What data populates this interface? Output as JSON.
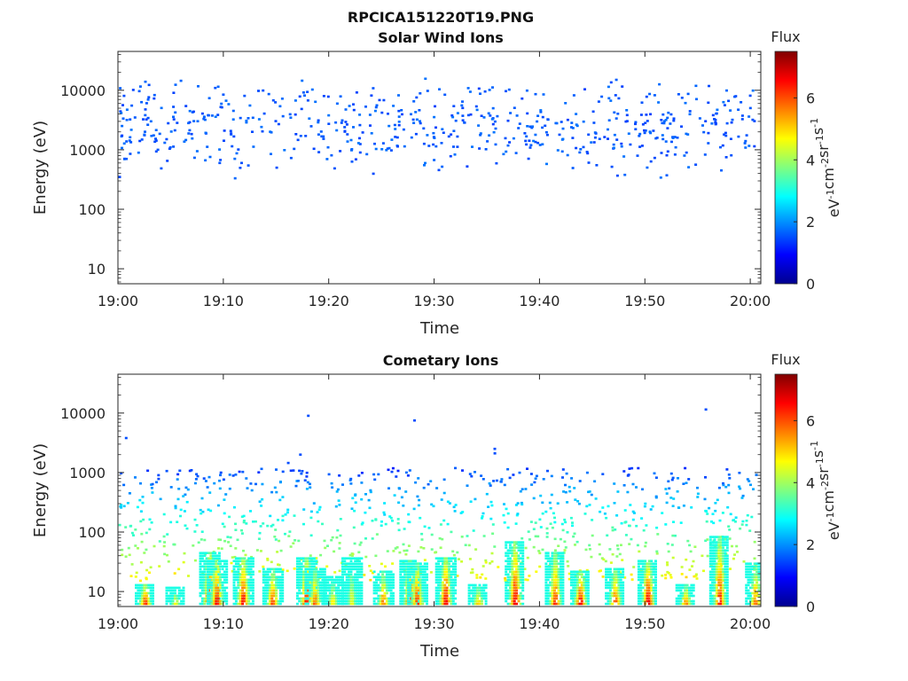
{
  "figure_title": "RPCICA151220T19.PNG",
  "colorbar": {
    "label": "Flux",
    "units_parts": [
      "eV",
      "-1",
      "cm",
      "-2",
      "sr",
      "-1",
      "s",
      "-1"
    ],
    "ticks": [
      "0",
      "2",
      "4",
      "6"
    ],
    "range": [
      0,
      7.5
    ],
    "colormap": "jet"
  },
  "chart_data": [
    {
      "type": "heatmap",
      "title": "Solar Wind Ions",
      "xlabel": "Time",
      "ylabel": "Energy (eV)",
      "yscale": "log",
      "xlim_minutes": [
        0,
        61
      ],
      "ylim": [
        5.6,
        45000
      ],
      "x_ticks": [
        "19:00",
        "19:10",
        "19:20",
        "19:30",
        "19:40",
        "19:50",
        "20:00"
      ],
      "y_ticks": [
        "10",
        "100",
        "1000",
        "10000"
      ],
      "description_of_data": "sparse single-count bins, flux about 1.5-2, energies ~300-17000 eV across whole hour",
      "energy_range_ev": [
        290,
        17000
      ],
      "typical_flux": 1.6
    },
    {
      "type": "heatmap",
      "title": "Cometary Ions",
      "xlabel": "Time",
      "ylabel": "Energy (eV)",
      "yscale": "log",
      "xlim_minutes": [
        0,
        61
      ],
      "ylim": [
        5.6,
        45000
      ],
      "x_ticks": [
        "19:00",
        "19:10",
        "19:20",
        "19:30",
        "19:40",
        "19:50",
        "20:00"
      ],
      "y_ticks": [
        "10",
        "100",
        "1000",
        "10000"
      ],
      "bursts": [
        {
          "t": 2.5,
          "top": 14,
          "peak": 6.8
        },
        {
          "t": 5.4,
          "top": 12,
          "peak": 5.0
        },
        {
          "t": 8.6,
          "top": 45,
          "peak": 7.3
        },
        {
          "t": 9.3,
          "top": 35,
          "peak": 7.0
        },
        {
          "t": 11.8,
          "top": 40,
          "peak": 7.1
        },
        {
          "t": 14.6,
          "top": 25,
          "peak": 6.5
        },
        {
          "t": 17.8,
          "top": 40,
          "peak": 7.1
        },
        {
          "t": 18.6,
          "top": 25,
          "peak": 6.3
        },
        {
          "t": 20.3,
          "top": 18,
          "peak": 5.2
        },
        {
          "t": 22.1,
          "top": 40,
          "peak": 4.8
        },
        {
          "t": 25.1,
          "top": 22,
          "peak": 6.2
        },
        {
          "t": 27.6,
          "top": 35,
          "peak": 7.0
        },
        {
          "t": 28.3,
          "top": 30,
          "peak": 6.8
        },
        {
          "t": 31.0,
          "top": 40,
          "peak": 7.2
        },
        {
          "t": 34.1,
          "top": 14,
          "peak": 5.5
        },
        {
          "t": 37.6,
          "top": 70,
          "peak": 7.2
        },
        {
          "t": 41.4,
          "top": 45,
          "peak": 6.8
        },
        {
          "t": 43.8,
          "top": 22,
          "peak": 7.2
        },
        {
          "t": 47.1,
          "top": 25,
          "peak": 6.6
        },
        {
          "t": 50.2,
          "top": 35,
          "peak": 7.3
        },
        {
          "t": 53.8,
          "top": 14,
          "peak": 6.0
        },
        {
          "t": 57.0,
          "top": 90,
          "peak": 6.9
        },
        {
          "t": 60.4,
          "top": 30,
          "peak": 6.2
        }
      ],
      "scatter_flux_range": [
        1.5,
        4.5
      ],
      "scatter_energy_range_ev": [
        15,
        1200
      ],
      "isolated_high_energy_points_ev": [
        9000,
        7500,
        11500,
        3800,
        2500,
        2000,
        2100,
        1450
      ]
    }
  ]
}
